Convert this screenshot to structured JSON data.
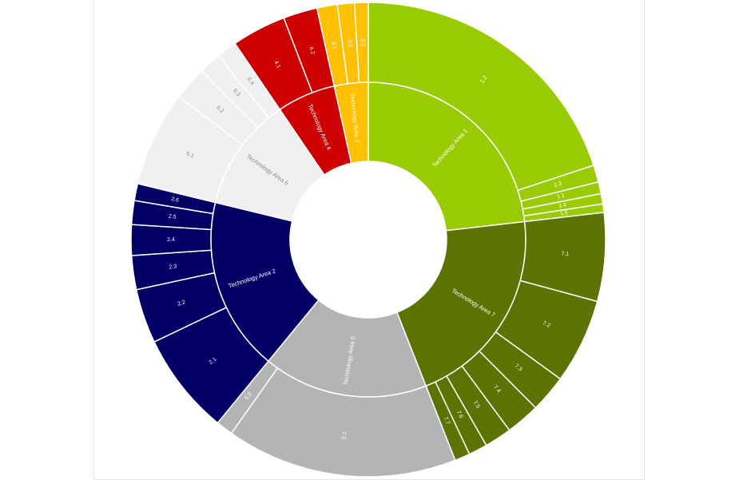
{
  "chart_data": {
    "type": "sunburst",
    "title": "",
    "colors": {
      "Technology Area 1": "#99cc00",
      "Technology Area 7": "#5b7300",
      "Technology Area 5": "#b3b4b6",
      "Technology Area 2": "#000066",
      "Technology Area 6": "#f0f0f2",
      "Technology Area 4": "#cc0000",
      "Technology Area 3": "#ffc000",
      "border": "#ffffff",
      "dark_label": "#ffffff",
      "light_label": "#888888"
    },
    "categories": [
      {
        "name": "Technology Area 1",
        "children": [
          {
            "name": "1.2",
            "value": 86
          },
          {
            "name": "1.3",
            "value": 5
          },
          {
            "name": "1.1",
            "value": 3.5
          },
          {
            "name": "1.4",
            "value": 3
          },
          {
            "name": "1.5",
            "value": 2.5
          }
        ]
      },
      {
        "name": "Technology Area 7",
        "children": [
          {
            "name": "7.1",
            "value": 26
          },
          {
            "name": "7.2",
            "value": 25
          },
          {
            "name": "7.3",
            "value": 11
          },
          {
            "name": "7.4",
            "value": 10
          },
          {
            "name": "7.5",
            "value": 8
          },
          {
            "name": "7.6",
            "value": 5.5
          },
          {
            "name": "7.7",
            "value": 4.5
          }
        ]
      },
      {
        "name": "Technology Area 5",
        "children": [
          {
            "name": "5.1",
            "value": 68
          },
          {
            "name": "5.2",
            "value": 5
          }
        ]
      },
      {
        "name": "Technology Area 2",
        "children": [
          {
            "name": "2.1",
            "value": 30
          },
          {
            "name": "2.2",
            "value": 16
          },
          {
            "name": "2.3",
            "value": 10
          },
          {
            "name": "2.4",
            "value": 9
          },
          {
            "name": "2.5",
            "value": 7
          },
          {
            "name": "2.6",
            "value": 5
          }
        ]
      },
      {
        "name": "Technology Area 6",
        "children": [
          {
            "name": "6.1",
            "value": 28
          },
          {
            "name": "6.2",
            "value": 10
          },
          {
            "name": "6.3",
            "value": 6.5
          },
          {
            "name": "6.4",
            "value": 6
          }
        ]
      },
      {
        "name": "Technology Area 4",
        "children": [
          {
            "name": "4.1",
            "value": 16
          },
          {
            "name": "4.2",
            "value": 10
          }
        ]
      },
      {
        "name": "Technology Area 3",
        "children": [
          {
            "name": "3.1",
            "value": 6
          },
          {
            "name": "3.2",
            "value": 5
          },
          {
            "name": "3.3",
            "value": 4
          }
        ]
      }
    ]
  }
}
